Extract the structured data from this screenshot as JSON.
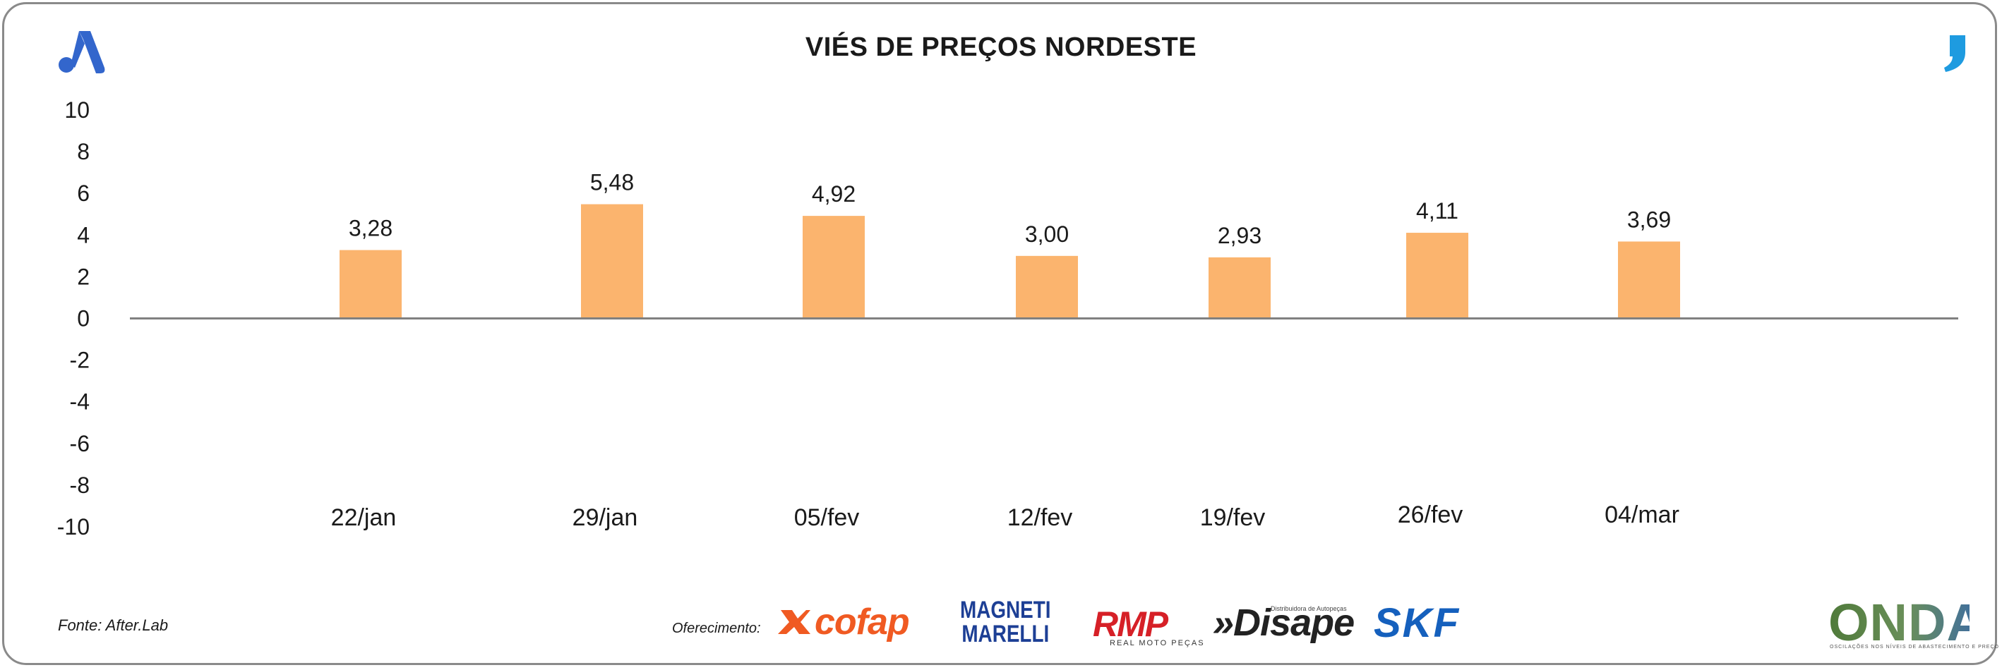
{
  "title": "VIÉS DE PREÇOS NORDESTE",
  "source": "Fonte: After.Lab",
  "sponsors": {
    "label": "Oferecimento:",
    "cofap": "cofap",
    "magneti_line1": "MAGNETI",
    "magneti_line2": "MARELLI",
    "rmp": "RMP",
    "rmp_sub": "REAL MOTO PEÇAS",
    "disape": "»Disape",
    "disape_sub": "Distribuidora de Autopeças",
    "skf": "SKF",
    "onda": "ONDA",
    "onda_sub": "OSCILAÇÕES NOS NÍVEIS DE ABASTECIMENTO E PREÇO"
  },
  "icons": {
    "brand_logo": "stylized-a-logo",
    "corner_logo": "comma-quote-logo"
  },
  "colors": {
    "bar": "#FBB46E",
    "axis": "#808080",
    "brand_blue": "#3366CC",
    "quote_blue": "#1E9BE0"
  },
  "chart_data": {
    "type": "bar",
    "categories": [
      "22/jan",
      "29/jan",
      "05/fev",
      "12/fev",
      "19/fev",
      "26/fev",
      "04/mar"
    ],
    "values": [
      3.28,
      5.48,
      4.92,
      3.0,
      2.93,
      4.11,
      3.69
    ],
    "value_labels": [
      "3,28",
      "5,48",
      "4,92",
      "3,00",
      "2,93",
      "4,11",
      "3,69"
    ],
    "yticks": [
      10,
      8,
      6,
      4,
      2,
      0,
      -2,
      -4,
      -6,
      -8,
      -10
    ],
    "ylim": [
      -10,
      10
    ],
    "grid": false,
    "legend": "none"
  }
}
